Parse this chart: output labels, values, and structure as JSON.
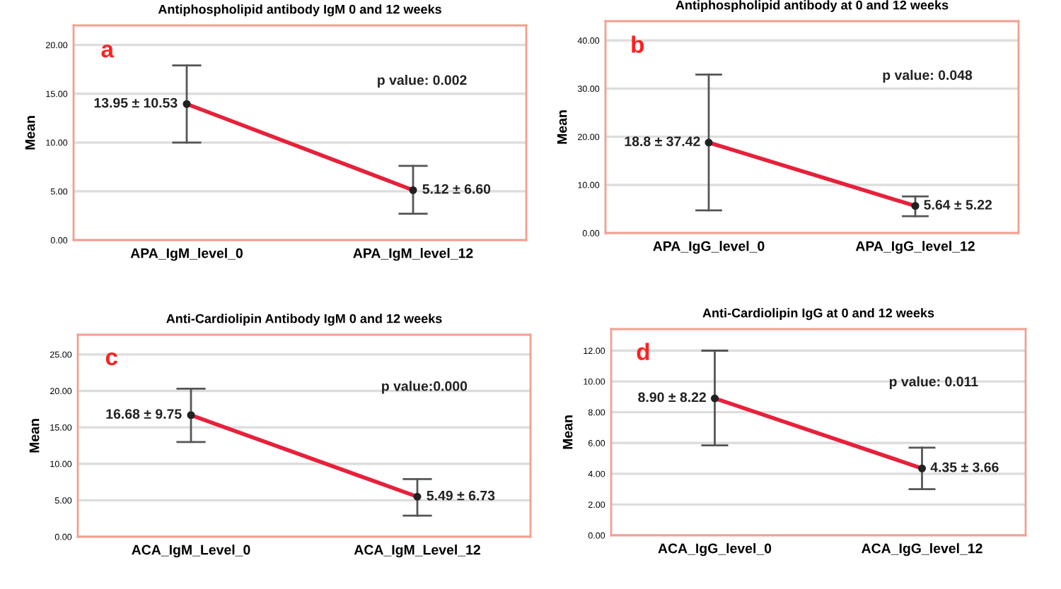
{
  "chart_data": [
    {
      "type": "line",
      "title": "Antiphospholipid antibody IgM 0 and 12 weeks",
      "ylabel": "Mean",
      "categories": [
        "APA_IgM_level_0",
        "APA_IgM_level_12"
      ],
      "series": [
        {
          "color": "#e8203a",
          "values": [
            13.95,
            5.12
          ],
          "errors": [
            [
              10.0,
              17.9
            ],
            [
              2.7,
              7.6
            ]
          ],
          "value_labels": [
            "13.95 ± 10.53",
            "5.12 ± 6.60"
          ]
        }
      ],
      "ylim": [
        0,
        22
      ],
      "yticks": [
        {
          "value": 0,
          "label": "0.00"
        },
        {
          "value": 5,
          "label": "5.00"
        },
        {
          "value": 10,
          "label": "10.00"
        },
        {
          "value": 15,
          "label": "15.00"
        },
        {
          "value": 20,
          "label": "20.00"
        }
      ],
      "grid": "y",
      "marker": "circle",
      "legend": false,
      "annotations": [
        "a",
        "p value: 0.002"
      ]
    },
    {
      "type": "line",
      "title": "Antiphospholipid antibody at 0 and 12 weeks",
      "ylabel": "Mean",
      "categories": [
        "APA_IgG_level_0",
        "APA_IgG_level_12"
      ],
      "series": [
        {
          "color": "#e8203a",
          "values": [
            18.8,
            5.64
          ],
          "errors": [
            [
              4.7,
              32.9
            ],
            [
              3.5,
              7.6
            ]
          ],
          "value_labels": [
            "18.8 ± 37.42",
            "5.64 ± 5.22"
          ]
        }
      ],
      "ylim": [
        0,
        44
      ],
      "yticks": [
        {
          "value": 0,
          "label": "0.00"
        },
        {
          "value": 10,
          "label": "10.00"
        },
        {
          "value": 20,
          "label": "20.00"
        },
        {
          "value": 30,
          "label": "30.00"
        },
        {
          "value": 40,
          "label": "40.00"
        }
      ],
      "grid": "y",
      "marker": "circle",
      "legend": false,
      "annotations": [
        "b",
        "p value: 0.048"
      ]
    },
    {
      "type": "line",
      "title": "Anti-Cardiolipin Antibody IgM 0 and 12 weeks",
      "ylabel": "Mean",
      "categories": [
        "ACA_IgM_Level_0",
        "ACA_IgM_Level_12"
      ],
      "series": [
        {
          "color": "#e8203a",
          "values": [
            16.68,
            5.49
          ],
          "errors": [
            [
              13.0,
              20.3
            ],
            [
              2.9,
              7.9
            ]
          ],
          "value_labels": [
            "16.68 ± 9.75",
            "5.49 ± 6.73"
          ]
        }
      ],
      "ylim": [
        0,
        27.7
      ],
      "yticks": [
        {
          "value": 0,
          "label": "0.00"
        },
        {
          "value": 5,
          "label": "5.00"
        },
        {
          "value": 10,
          "label": "10.00"
        },
        {
          "value": 15,
          "label": "15.00"
        },
        {
          "value": 20,
          "label": "20.00"
        },
        {
          "value": 25,
          "label": "25.00"
        }
      ],
      "grid": "y",
      "marker": "circle",
      "legend": false,
      "annotations": [
        "c",
        "p value:0.000"
      ]
    },
    {
      "type": "line",
      "title": "Anti-Cardiolipin IgG at 0 and 12 weeks",
      "ylabel": "Mean",
      "categories": [
        "ACA_IgG_level_0",
        "ACA_IgG_level_12"
      ],
      "series": [
        {
          "color": "#e8203a",
          "values": [
            8.9,
            4.35
          ],
          "errors": [
            [
              5.85,
              12.0
            ],
            [
              3.0,
              5.7
            ]
          ],
          "value_labels": [
            "8.90 ± 8.22",
            "4.35 ± 3.66"
          ]
        }
      ],
      "ylim": [
        0,
        13.4
      ],
      "yticks": [
        {
          "value": 0,
          "label": "0.00"
        },
        {
          "value": 2,
          "label": "2.00"
        },
        {
          "value": 4,
          "label": "4.00"
        },
        {
          "value": 6,
          "label": "6.00"
        },
        {
          "value": 8,
          "label": "8.00"
        },
        {
          "value": 10,
          "label": "10.00"
        },
        {
          "value": 12,
          "label": "12.00"
        }
      ],
      "grid": "y",
      "marker": "circle",
      "legend": false,
      "annotations": [
        "d",
        "p value: 0.011"
      ]
    }
  ]
}
